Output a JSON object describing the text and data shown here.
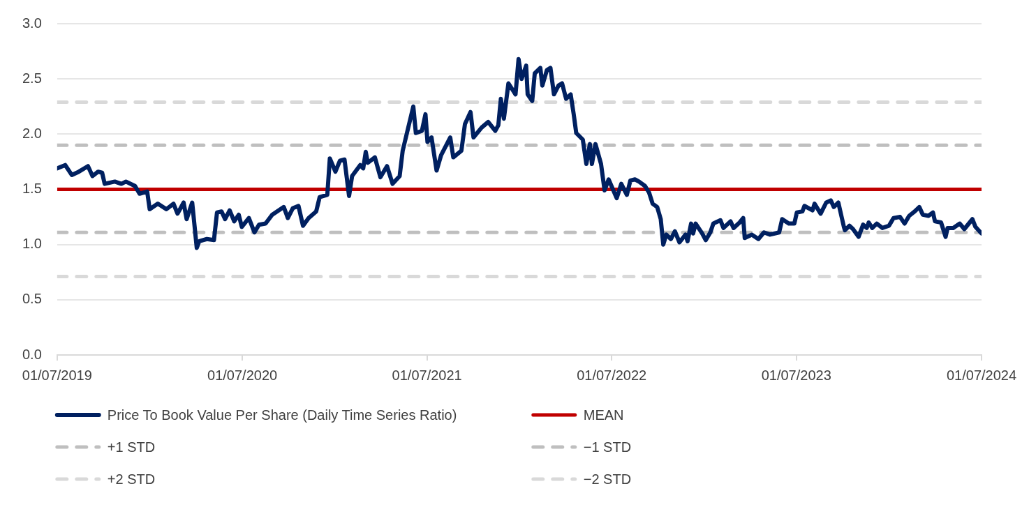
{
  "chart_data": {
    "type": "line",
    "x": [
      "2019-07-01",
      "2019-07-17",
      "2019-07-30",
      "2019-08-13",
      "2019-08-31",
      "2019-09-09",
      "2019-09-20",
      "2019-09-28",
      "2019-10-03",
      "2019-10-23",
      "2019-11-05",
      "2019-11-14",
      "2019-12-02",
      "2019-12-11",
      "2019-12-26",
      "2019-12-31",
      "2020-01-16",
      "2020-02-02",
      "2020-02-16",
      "2020-02-24",
      "2020-03-07",
      "2020-03-13",
      "2020-03-24",
      "2020-04-02",
      "2020-04-07",
      "2020-04-22",
      "2020-05-06",
      "2020-05-12",
      "2020-05-21",
      "2020-05-28",
      "2020-06-06",
      "2020-06-15",
      "2020-06-24",
      "2020-06-30",
      "2020-07-14",
      "2020-07-25",
      "2020-08-03",
      "2020-08-16",
      "2020-08-29",
      "2020-09-21",
      "2020-09-29",
      "2020-10-09",
      "2020-10-20",
      "2020-10-29",
      "2020-11-09",
      "2020-11-24",
      "2020-12-01",
      "2020-12-16",
      "2020-12-21",
      "2021-01-01",
      "2021-01-10",
      "2021-01-19",
      "2021-01-28",
      "2021-02-03",
      "2021-02-19",
      "2021-02-25",
      "2021-03-02",
      "2021-03-06",
      "2021-03-20",
      "2021-03-31",
      "2021-04-13",
      "2021-04-24",
      "2021-05-08",
      "2021-05-14",
      "2021-05-25",
      "2021-06-04",
      "2021-06-09",
      "2021-06-21",
      "2021-06-28",
      "2021-07-02",
      "2021-07-10",
      "2021-07-20",
      "2021-07-29",
      "2021-08-16",
      "2021-08-22",
      "2021-09-07",
      "2021-09-14",
      "2021-09-25",
      "2021-10-01",
      "2021-10-17",
      "2021-10-30",
      "2021-11-13",
      "2021-11-19",
      "2021-11-24",
      "2021-11-30",
      "2021-12-09",
      "2021-12-23",
      "2021-12-29",
      "2022-01-04",
      "2022-01-13",
      "2022-01-16",
      "2022-01-25",
      "2022-01-30",
      "2022-02-10",
      "2022-02-14",
      "2022-02-23",
      "2022-03-02",
      "2022-03-09",
      "2022-03-18",
      "2022-03-25",
      "2022-04-02",
      "2022-04-11",
      "2022-04-17",
      "2022-04-22",
      "2022-05-05",
      "2022-05-12",
      "2022-05-19",
      "2022-05-23",
      "2022-05-30",
      "2022-06-10",
      "2022-06-17",
      "2022-06-25",
      "2022-07-11",
      "2022-07-20",
      "2022-07-31",
      "2022-08-07",
      "2022-08-16",
      "2022-08-24",
      "2022-09-05",
      "2022-09-13",
      "2022-09-20",
      "2022-09-29",
      "2022-10-06",
      "2022-10-11",
      "2022-10-17",
      "2022-10-26",
      "2022-11-03",
      "2022-11-12",
      "2022-11-24",
      "2022-11-28",
      "2022-12-05",
      "2022-12-09",
      "2022-12-14",
      "2022-12-27",
      "2023-01-03",
      "2023-01-12",
      "2023-01-18",
      "2023-02-01",
      "2023-02-07",
      "2023-02-21",
      "2023-02-27",
      "2023-03-11",
      "2023-03-18",
      "2023-03-21",
      "2023-04-04",
      "2023-04-17",
      "2023-04-28",
      "2023-05-10",
      "2023-05-28",
      "2023-06-03",
      "2023-06-16",
      "2023-06-27",
      "2023-07-02",
      "2023-07-13",
      "2023-07-17",
      "2023-08-02",
      "2023-08-06",
      "2023-08-18",
      "2023-08-29",
      "2023-09-07",
      "2023-09-13",
      "2023-09-22",
      "2023-09-27",
      "2023-10-03",
      "2023-10-05",
      "2023-10-14",
      "2023-10-21",
      "2023-11-01",
      "2023-11-10",
      "2023-11-17",
      "2023-11-21",
      "2023-11-28",
      "2023-12-07",
      "2023-12-18",
      "2023-12-31",
      "2024-01-09",
      "2024-01-22",
      "2024-01-31",
      "2024-02-09",
      "2024-02-20",
      "2024-02-29",
      "2024-03-07",
      "2024-03-18",
      "2024-03-27",
      "2024-03-31",
      "2024-04-12",
      "2024-04-21",
      "2024-04-25",
      "2024-05-06",
      "2024-05-19",
      "2024-05-28",
      "2024-06-13",
      "2024-06-19",
      "2024-07-01"
    ],
    "series": [
      {
        "name": "Price To Book Value Per Share (Daily Time Series Ratio)",
        "color": "#002060",
        "values": [
          1.69,
          1.72,
          1.63,
          1.66,
          1.71,
          1.62,
          1.66,
          1.65,
          1.55,
          1.57,
          1.55,
          1.57,
          1.53,
          1.46,
          1.48,
          1.32,
          1.37,
          1.32,
          1.37,
          1.28,
          1.38,
          1.23,
          1.38,
          0.97,
          1.03,
          1.05,
          1.04,
          1.29,
          1.3,
          1.23,
          1.31,
          1.21,
          1.27,
          1.16,
          1.24,
          1.11,
          1.18,
          1.19,
          1.27,
          1.34,
          1.24,
          1.33,
          1.35,
          1.17,
          1.24,
          1.3,
          1.43,
          1.45,
          1.78,
          1.66,
          1.76,
          1.77,
          1.44,
          1.62,
          1.72,
          1.69,
          1.84,
          1.74,
          1.79,
          1.61,
          1.71,
          1.55,
          1.62,
          1.85,
          2.06,
          2.25,
          2.01,
          2.03,
          2.18,
          1.93,
          1.97,
          1.67,
          1.81,
          1.97,
          1.79,
          1.85,
          2.09,
          2.2,
          1.97,
          2.06,
          2.11,
          2.03,
          2.08,
          2.32,
          2.14,
          2.46,
          2.36,
          2.68,
          2.5,
          2.62,
          2.36,
          2.3,
          2.55,
          2.6,
          2.44,
          2.58,
          2.6,
          2.36,
          2.44,
          2.46,
          2.32,
          2.36,
          2.18,
          2.01,
          1.95,
          1.73,
          1.91,
          1.73,
          1.91,
          1.73,
          1.49,
          1.59,
          1.42,
          1.55,
          1.45,
          1.58,
          1.59,
          1.57,
          1.53,
          1.47,
          1.37,
          1.34,
          1.23,
          1.0,
          1.09,
          1.05,
          1.12,
          1.02,
          1.09,
          1.03,
          1.19,
          1.1,
          1.19,
          1.1,
          1.04,
          1.11,
          1.19,
          1.22,
          1.15,
          1.21,
          1.15,
          1.2,
          1.24,
          1.06,
          1.09,
          1.05,
          1.11,
          1.09,
          1.11,
          1.23,
          1.19,
          1.19,
          1.29,
          1.3,
          1.35,
          1.31,
          1.37,
          1.28,
          1.38,
          1.4,
          1.34,
          1.38,
          1.28,
          1.16,
          1.13,
          1.17,
          1.14,
          1.07,
          1.18,
          1.15,
          1.2,
          1.15,
          1.19,
          1.15,
          1.17,
          1.24,
          1.25,
          1.19,
          1.26,
          1.3,
          1.34,
          1.27,
          1.26,
          1.29,
          1.21,
          1.2,
          1.07,
          1.15,
          1.15,
          1.19,
          1.14,
          1.23,
          1.16,
          1.1
        ]
      }
    ],
    "xlim": [
      "2019-07-01",
      "2024-07-01"
    ],
    "xticks": [
      {
        "value": "2019-07-01",
        "label": "01/07/2019"
      },
      {
        "value": "2020-07-01",
        "label": "01/07/2020"
      },
      {
        "value": "2021-07-01",
        "label": "01/07/2021"
      },
      {
        "value": "2022-07-01",
        "label": "01/07/2022"
      },
      {
        "value": "2023-07-01",
        "label": "01/07/2023"
      },
      {
        "value": "2024-07-01",
        "label": "01/07/2024"
      }
    ],
    "ylim": [
      0,
      3
    ],
    "yticks": [
      {
        "value": 0,
        "label": "0.0"
      },
      0.5,
      {
        "value": 1,
        "label": "1.0"
      },
      1.5,
      {
        "value": 2,
        "label": "2.0"
      },
      2.5,
      {
        "value": 3,
        "label": "3.0"
      }
    ],
    "ref_lines": [
      {
        "axis": "y",
        "value": 1.5,
        "label": "MEAN",
        "color": "#c00000",
        "line_style": "solid"
      },
      {
        "axis": "y",
        "value": 1.9,
        "label": "+1 STD",
        "color": "#bfbfbf",
        "line_style": "dashed"
      },
      {
        "axis": "y",
        "value": 1.11,
        "label": "−1 STD",
        "color": "#bfbfbf",
        "line_style": "dashed"
      },
      {
        "axis": "y",
        "value": 2.29,
        "label": "+2 STD",
        "color": "#d9d9d9",
        "line_style": "dashed"
      },
      {
        "axis": "y",
        "value": 0.71,
        "label": "−2 STD",
        "color": "#d9d9d9",
        "line_style": "dashed"
      }
    ],
    "grid": "y",
    "legend": "bottom"
  }
}
